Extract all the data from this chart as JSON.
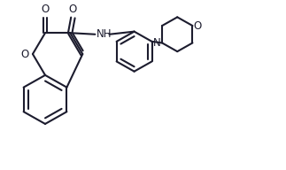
{
  "bg_color": "#ffffff",
  "line_color": "#1c1c2e",
  "line_width": 1.5,
  "font_size": 8.5,
  "label_color": "#1c1c2e",
  "figsize": [
    3.23,
    1.92
  ],
  "dpi": 100,
  "xlim": [
    0,
    10
  ],
  "ylim": [
    0,
    6
  ]
}
